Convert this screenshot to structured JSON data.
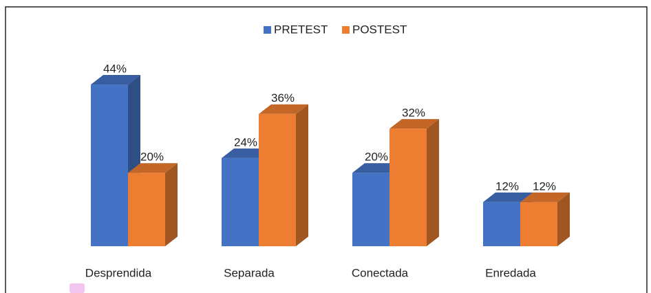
{
  "chart_data": {
    "type": "bar3d",
    "categories": [
      "Desprendida",
      "Separada",
      "Conectada",
      "Enredada"
    ],
    "series": [
      {
        "name": "PRETEST",
        "color": "#4472c4",
        "values": [
          44,
          24,
          20,
          12
        ],
        "value_labels": [
          "44%",
          "24%",
          "20%",
          "12%"
        ]
      },
      {
        "name": "POSTEST",
        "color": "#ed7d31",
        "values": [
          20,
          36,
          32,
          12
        ],
        "value_labels": [
          "20%",
          "36%",
          "32%",
          "12%"
        ]
      }
    ],
    "legend": "top"
  }
}
